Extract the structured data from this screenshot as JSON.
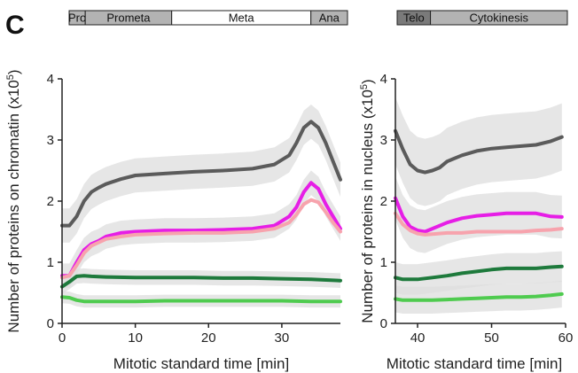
{
  "panel_letter": "C",
  "colors": {
    "gray": "#5b5b5b",
    "magenta": "#e61ee6",
    "pink": "#f7a3ad",
    "dark_green": "#1e7a3c",
    "light_green": "#4fcb4f",
    "band": "#dedede",
    "phase_gray": "#b3b3b3",
    "phase_dark": "#7a7a7a",
    "phase_white": "#ffffff"
  },
  "chart_data": [
    {
      "type": "line",
      "xlabel": "Mitotic standard time [min]",
      "ylabel": "Number of proteins on chromatin (x10",
      "ylabel_sup": "5",
      "ylabel_close": ")",
      "xlim": [
        0,
        38
      ],
      "ylim": [
        0,
        4
      ],
      "xticks": [
        0,
        10,
        20,
        30
      ],
      "yticks": [
        0,
        1,
        2,
        3,
        4
      ],
      "phases": [
        {
          "label": "Pro",
          "start": 0,
          "end": 2.2,
          "fill": "#b3b3b3"
        },
        {
          "label": "Prometa",
          "start": 2.2,
          "end": 14,
          "fill": "#b3b3b3"
        },
        {
          "label": "Meta",
          "start": 14,
          "end": 33,
          "fill": "#ffffff"
        },
        {
          "label": "Ana",
          "start": 33,
          "end": 38,
          "fill": "#b3b3b3"
        }
      ],
      "series": [
        {
          "color": "#5b5b5b",
          "band": 0.28,
          "x": [
            0,
            1,
            2,
            3,
            4,
            5,
            6,
            8,
            10,
            14,
            18,
            22,
            26,
            29,
            31,
            32,
            33,
            34,
            35,
            36,
            37,
            38
          ],
          "y": [
            1.6,
            1.6,
            1.75,
            2.0,
            2.15,
            2.22,
            2.28,
            2.36,
            2.42,
            2.45,
            2.48,
            2.5,
            2.53,
            2.6,
            2.75,
            2.95,
            3.2,
            3.3,
            3.2,
            2.95,
            2.65,
            2.35
          ]
        },
        {
          "color": "#e61ee6",
          "band": 0.2,
          "x": [
            0,
            1,
            2,
            3,
            4,
            5,
            6,
            8,
            10,
            14,
            18,
            22,
            26,
            29,
            31,
            32,
            33,
            34,
            35,
            36,
            37,
            38
          ],
          "y": [
            0.78,
            0.78,
            1.0,
            1.2,
            1.3,
            1.35,
            1.42,
            1.48,
            1.5,
            1.52,
            1.52,
            1.53,
            1.55,
            1.6,
            1.75,
            1.9,
            2.15,
            2.3,
            2.2,
            1.95,
            1.75,
            1.55
          ]
        },
        {
          "color": "#f7a3ad",
          "band": 0.0,
          "x": [
            0,
            1,
            2,
            3,
            4,
            6,
            8,
            10,
            14,
            18,
            22,
            26,
            29,
            31,
            32,
            33,
            34,
            35,
            36,
            37,
            38
          ],
          "y": [
            0.75,
            0.78,
            0.95,
            1.15,
            1.27,
            1.38,
            1.42,
            1.45,
            1.47,
            1.48,
            1.48,
            1.5,
            1.55,
            1.65,
            1.78,
            1.95,
            2.02,
            1.98,
            1.82,
            1.65,
            1.5
          ]
        },
        {
          "color": "#1e7a3c",
          "band": 0.12,
          "x": [
            0,
            1,
            2,
            3,
            4,
            6,
            10,
            14,
            18,
            22,
            26,
            30,
            34,
            38
          ],
          "y": [
            0.6,
            0.68,
            0.77,
            0.78,
            0.77,
            0.76,
            0.75,
            0.75,
            0.75,
            0.74,
            0.74,
            0.73,
            0.72,
            0.7
          ]
        },
        {
          "color": "#4fcb4f",
          "band": 0.1,
          "x": [
            0,
            1,
            2,
            3,
            4,
            6,
            10,
            14,
            18,
            22,
            26,
            30,
            34,
            38
          ],
          "y": [
            0.43,
            0.42,
            0.38,
            0.36,
            0.36,
            0.36,
            0.36,
            0.37,
            0.37,
            0.37,
            0.37,
            0.37,
            0.36,
            0.36
          ]
        }
      ]
    },
    {
      "type": "line",
      "xlabel": "Mitotic standard time [min]",
      "ylabel": "Number of proteins in nucleus  (x10",
      "ylabel_sup": "5",
      "ylabel_close": ")",
      "xlim": [
        37,
        60
      ],
      "ylim": [
        0,
        4
      ],
      "xticks": [
        40,
        50,
        60
      ],
      "yticks": [
        0,
        1,
        2,
        3,
        4
      ],
      "phases": [
        {
          "label": "Telo",
          "start": 37,
          "end": 41.5,
          "fill": "#7a7a7a"
        },
        {
          "label": "Cytokinesis",
          "start": 41.5,
          "end": 60,
          "fill": "#b3b3b3"
        }
      ],
      "series": [
        {
          "color": "#5b5b5b",
          "band": 0.55,
          "x": [
            37,
            38,
            39,
            40,
            41,
            42,
            43,
            44,
            46,
            48,
            50,
            52,
            54,
            56,
            58,
            59.5
          ],
          "y": [
            3.15,
            2.85,
            2.6,
            2.5,
            2.47,
            2.5,
            2.55,
            2.65,
            2.75,
            2.82,
            2.86,
            2.88,
            2.9,
            2.92,
            2.98,
            3.05
          ]
        },
        {
          "color": "#e61ee6",
          "band": 0.35,
          "x": [
            37,
            38,
            39,
            40,
            41,
            42,
            44,
            46,
            48,
            50,
            52,
            54,
            56,
            58,
            59.5
          ],
          "y": [
            2.05,
            1.75,
            1.58,
            1.52,
            1.5,
            1.55,
            1.65,
            1.72,
            1.76,
            1.78,
            1.8,
            1.8,
            1.8,
            1.75,
            1.74
          ]
        },
        {
          "color": "#f7a3ad",
          "band": 0.0,
          "x": [
            37,
            38,
            39,
            40,
            41,
            42,
            44,
            46,
            48,
            50,
            52,
            54,
            56,
            58,
            59.5
          ],
          "y": [
            1.8,
            1.62,
            1.52,
            1.47,
            1.45,
            1.46,
            1.48,
            1.48,
            1.5,
            1.5,
            1.5,
            1.5,
            1.52,
            1.53,
            1.55
          ]
        },
        {
          "color": "#1e7a3c",
          "band": 0.25,
          "x": [
            37,
            38,
            40,
            42,
            44,
            46,
            48,
            50,
            52,
            54,
            56,
            58,
            59.5
          ],
          "y": [
            0.75,
            0.72,
            0.72,
            0.75,
            0.78,
            0.82,
            0.85,
            0.88,
            0.9,
            0.9,
            0.9,
            0.92,
            0.93
          ]
        },
        {
          "color": "#4fcb4f",
          "band": 0.22,
          "x": [
            37,
            38,
            40,
            42,
            44,
            46,
            48,
            50,
            52,
            54,
            56,
            58,
            59.5
          ],
          "y": [
            0.4,
            0.38,
            0.38,
            0.38,
            0.39,
            0.4,
            0.41,
            0.42,
            0.43,
            0.43,
            0.44,
            0.46,
            0.48
          ]
        }
      ]
    }
  ]
}
